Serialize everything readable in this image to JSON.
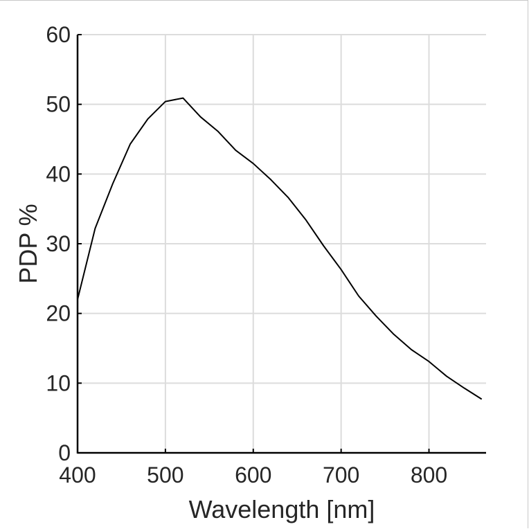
{
  "chart_data": {
    "type": "line",
    "title": "",
    "xlabel": "Wavelength [nm]",
    "ylabel": "PDP %",
    "xlim": [
      400,
      865
    ],
    "ylim": [
      0,
      60
    ],
    "xticks": [
      400,
      500,
      600,
      700,
      800
    ],
    "yticks": [
      0,
      10,
      20,
      30,
      40,
      50,
      60
    ],
    "grid": true,
    "line_color": "#000000",
    "grid_color": "#dcdcdc",
    "series": [
      {
        "x": [
          400,
          420,
          440,
          460,
          480,
          500,
          520,
          540,
          560,
          580,
          600,
          620,
          640,
          660,
          680,
          700,
          720,
          740,
          760,
          780,
          800,
          820,
          840,
          860
        ],
        "y": [
          22.0,
          32.2,
          38.6,
          44.3,
          47.9,
          50.4,
          50.9,
          48.2,
          46.1,
          43.4,
          41.5,
          39.2,
          36.6,
          33.4,
          29.7,
          26.3,
          22.5,
          19.6,
          17.0,
          14.8,
          13.1,
          11.0,
          9.3,
          7.7
        ]
      }
    ]
  }
}
